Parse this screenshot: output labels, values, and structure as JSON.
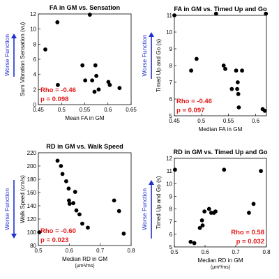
{
  "colors": {
    "point": "#000000",
    "stat": "#e21b1b",
    "arrow": "#1f2fd0"
  },
  "chart_data": [
    {
      "type": "scatter",
      "title": "FA in GM vs. Sensation",
      "xlabel": "Mean FA in GM",
      "xunit": "",
      "ylabel": "Sum Vibration Sensation (vu)",
      "xlim": [
        0.45,
        0.65
      ],
      "ylim": [
        0,
        12
      ],
      "xticks": [
        "0.45",
        "0.5",
        "0.55",
        "0.6",
        "0.65"
      ],
      "yticks": [
        "0",
        "2",
        "4",
        "6",
        "8",
        "10",
        "12"
      ],
      "worse_label": "Worse Function",
      "worse_direction": "up",
      "stat_rho": "Rho = -0.46",
      "stat_p": "p = 0.098",
      "stat_position": "bottom-left",
      "points": [
        {
          "x": 0.465,
          "y": 7.3
        },
        {
          "x": 0.491,
          "y": 10.9
        },
        {
          "x": 0.492,
          "y": 2.6
        },
        {
          "x": 0.545,
          "y": 5.2
        },
        {
          "x": 0.551,
          "y": 3.2
        },
        {
          "x": 0.561,
          "y": 11.9
        },
        {
          "x": 0.566,
          "y": 3.2
        },
        {
          "x": 0.571,
          "y": 1.7
        },
        {
          "x": 0.573,
          "y": 5.2
        },
        {
          "x": 0.575,
          "y": 3.8
        },
        {
          "x": 0.58,
          "y": 2.0
        },
        {
          "x": 0.601,
          "y": 3.0
        },
        {
          "x": 0.604,
          "y": 2.6
        },
        {
          "x": 0.625,
          "y": 2.2
        }
      ]
    },
    {
      "type": "scatter",
      "title": "FA in GM vs. Timed Up and Go",
      "xlabel": "Median FA in GM",
      "xunit": "",
      "ylabel": "Timed Up and Go (s)",
      "xlim": [
        0.45,
        0.62
      ],
      "ylim": [
        5,
        11
      ],
      "xticks": [
        "0.45",
        "0.5",
        "0.55",
        "0.6"
      ],
      "yticks": [
        "5",
        "6",
        "7",
        "8",
        "9",
        "10",
        "11"
      ],
      "worse_label": "Worse Function",
      "worse_direction": "up",
      "stat_rho": "Rho = -0.46",
      "stat_p": "p = 0.097",
      "stat_position": "bottom-left",
      "points": [
        {
          "x": 0.45,
          "y": 11.0
        },
        {
          "x": 0.481,
          "y": 7.7
        },
        {
          "x": 0.491,
          "y": 8.4
        },
        {
          "x": 0.527,
          "y": 11.1
        },
        {
          "x": 0.541,
          "y": 8.0
        },
        {
          "x": 0.544,
          "y": 7.8
        },
        {
          "x": 0.556,
          "y": 6.6
        },
        {
          "x": 0.564,
          "y": 7.7
        },
        {
          "x": 0.566,
          "y": 6.6
        },
        {
          "x": 0.567,
          "y": 7.0
        },
        {
          "x": 0.568,
          "y": 6.3
        },
        {
          "x": 0.569,
          "y": 5.5
        },
        {
          "x": 0.575,
          "y": 7.7
        },
        {
          "x": 0.613,
          "y": 5.4
        },
        {
          "x": 0.617,
          "y": 5.3
        },
        {
          "x": 0.619,
          "y": 11.1
        }
      ]
    },
    {
      "type": "scatter",
      "title": "RD in GM vs. Walk Speed",
      "xlabel": "Median RD in GM",
      "xunit": "(μm²/ms)",
      "ylabel": "Walk Speed (cm/s)",
      "xlim": [
        0.5,
        0.8
      ],
      "ylim": [
        80,
        220
      ],
      "xticks": [
        "0.5",
        "0.6",
        "0.7",
        "0.8"
      ],
      "yticks": [
        "80",
        "100",
        "120",
        "140",
        "160",
        "180",
        "200",
        "220"
      ],
      "worse_label": "Worse Function",
      "worse_direction": "down",
      "stat_rho": "Rho = -0.60",
      "stat_p": "p = 0.023",
      "stat_position": "bottom-left",
      "points": [
        {
          "x": 0.503,
          "y": 100
        },
        {
          "x": 0.562,
          "y": 208
        },
        {
          "x": 0.573,
          "y": 200
        },
        {
          "x": 0.578,
          "y": 188
        },
        {
          "x": 0.59,
          "y": 177
        },
        {
          "x": 0.598,
          "y": 166
        },
        {
          "x": 0.599,
          "y": 148
        },
        {
          "x": 0.601,
          "y": 143
        },
        {
          "x": 0.613,
          "y": 144
        },
        {
          "x": 0.619,
          "y": 161
        },
        {
          "x": 0.623,
          "y": 133
        },
        {
          "x": 0.633,
          "y": 127
        },
        {
          "x": 0.642,
          "y": 113
        },
        {
          "x": 0.66,
          "y": 107
        },
        {
          "x": 0.745,
          "y": 148
        },
        {
          "x": 0.761,
          "y": 132
        },
        {
          "x": 0.776,
          "y": 98
        }
      ]
    },
    {
      "type": "scatter",
      "title": "RD in GM vs. Timed Up and Go",
      "xlabel": "Median RD in GM",
      "xunit": "(μm²/ms)",
      "ylabel": "Timed Up and Go (s)",
      "xlim": [
        0.5,
        0.8
      ],
      "ylim": [
        5,
        12
      ],
      "xticks": [
        "0.5",
        "0.6",
        "0.7",
        "0.8"
      ],
      "yticks": [
        "5",
        "6",
        "7",
        "8",
        "9",
        "10",
        "11",
        "12"
      ],
      "worse_label": "Worse Function",
      "worse_direction": "up",
      "stat_rho": "Rho = 0.58",
      "stat_p": "p = 0.032",
      "stat_position": "bottom-right",
      "points": [
        {
          "x": 0.502,
          "y": 11.1
        },
        {
          "x": 0.553,
          "y": 5.4
        },
        {
          "x": 0.565,
          "y": 5.3
        },
        {
          "x": 0.583,
          "y": 6.5
        },
        {
          "x": 0.59,
          "y": 7.1
        },
        {
          "x": 0.592,
          "y": 6.7
        },
        {
          "x": 0.598,
          "y": 7.8
        },
        {
          "x": 0.613,
          "y": 8.0
        },
        {
          "x": 0.62,
          "y": 7.7
        },
        {
          "x": 0.629,
          "y": 7.7
        },
        {
          "x": 0.634,
          "y": 7.8
        },
        {
          "x": 0.662,
          "y": 11.1
        },
        {
          "x": 0.743,
          "y": 7.7
        },
        {
          "x": 0.758,
          "y": 8.4
        },
        {
          "x": 0.782,
          "y": 11.0
        }
      ]
    }
  ]
}
